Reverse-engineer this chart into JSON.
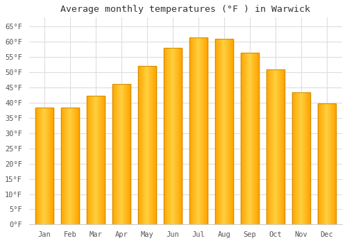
{
  "title": "Average monthly temperatures (°F ) in Warwick",
  "months": [
    "Jan",
    "Feb",
    "Mar",
    "Apr",
    "May",
    "Jun",
    "Jul",
    "Aug",
    "Sep",
    "Oct",
    "Nov",
    "Dec"
  ],
  "values": [
    38.3,
    38.5,
    42.3,
    46.2,
    52.0,
    58.0,
    61.5,
    61.0,
    56.5,
    51.0,
    43.5,
    39.8
  ],
  "bar_color_left": "#FFA500",
  "bar_color_mid": "#FFD040",
  "bar_color_right": "#FFA500",
  "ylim": [
    0,
    68
  ],
  "yticks": [
    0,
    5,
    10,
    15,
    20,
    25,
    30,
    35,
    40,
    45,
    50,
    55,
    60,
    65
  ],
  "ytick_labels": [
    "0°F",
    "5°F",
    "10°F",
    "15°F",
    "20°F",
    "25°F",
    "30°F",
    "35°F",
    "40°F",
    "45°F",
    "50°F",
    "55°F",
    "60°F",
    "65°F"
  ],
  "figure_bg": "#ffffff",
  "axes_bg": "#ffffff",
  "grid_color": "#dddddd",
  "title_fontsize": 9.5,
  "tick_fontsize": 7.5,
  "bar_width": 0.72
}
